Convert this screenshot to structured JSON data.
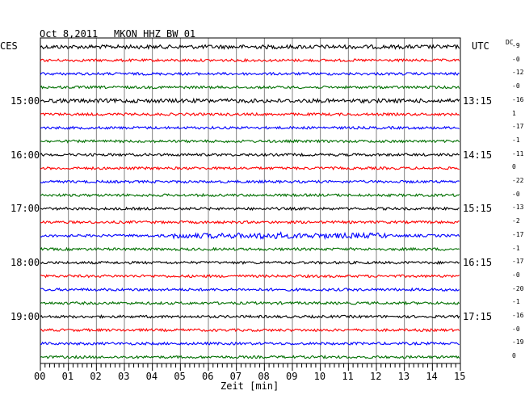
{
  "header": {
    "date": "Oct 8,2011",
    "station": "MKON HHZ BW 01",
    "left_tz": "CES",
    "right_tz": "UTC",
    "dc_label": "DC"
  },
  "colors": {
    "trace_cycle": [
      "#000000",
      "#ff0000",
      "#0000ff",
      "#007000"
    ],
    "grid": "#808080",
    "frame": "#000000"
  },
  "chart_data": {
    "type": "line",
    "title": "Oct 8,2011   MKON HHZ BW 01",
    "xlabel": "Zeit [min]",
    "xlim": [
      0,
      15
    ],
    "x_ticks": [
      "00",
      "01",
      "02",
      "03",
      "04",
      "05",
      "06",
      "07",
      "08",
      "09",
      "10",
      "11",
      "12",
      "13",
      "14",
      "15"
    ],
    "left_time_labels": [
      "15:00",
      "16:00",
      "17:00",
      "18:00",
      "19:00"
    ],
    "right_time_labels": [
      "13:15",
      "14:15",
      "15:15",
      "16:15",
      "17:15"
    ],
    "dc_offsets": [
      "-9",
      "-0",
      "-12",
      "-0",
      "-16",
      "1",
      "-17",
      "-1",
      "-11",
      "0",
      "-22",
      "-0",
      "-13",
      "-2",
      "-17",
      "-1",
      "-17",
      "-0",
      "-20",
      "-1",
      "-16",
      "-0",
      "-19",
      "0"
    ],
    "traces": 24,
    "trace_colors_repeat": [
      "black",
      "red",
      "blue",
      "green"
    ],
    "grid": true
  }
}
